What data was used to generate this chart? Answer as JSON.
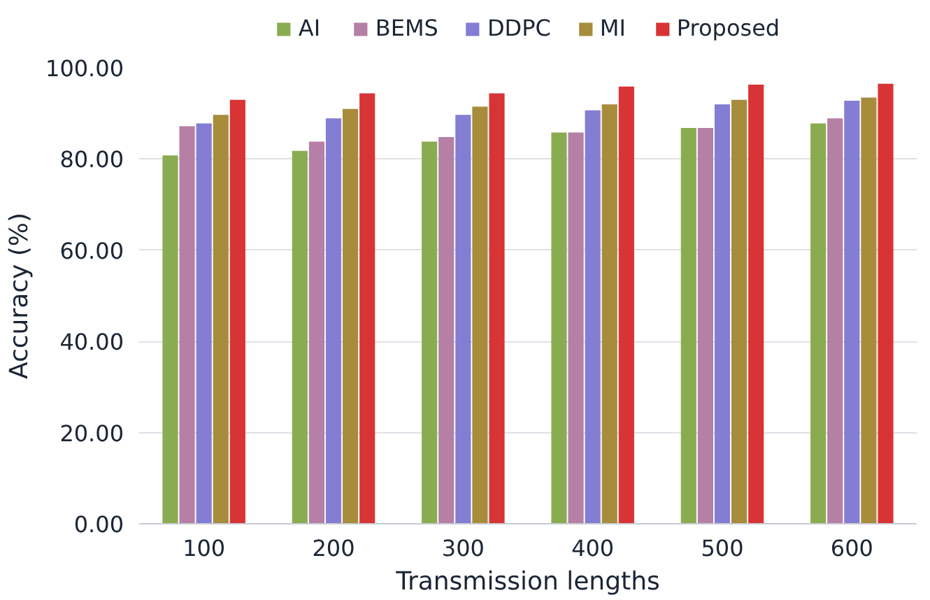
{
  "chart_data": {
    "type": "bar",
    "xlabel": "Transmission lengths",
    "ylabel": "Accuracy (%)",
    "categories": [
      "100",
      "200",
      "300",
      "400",
      "500",
      "600"
    ],
    "series": [
      {
        "name": "AI",
        "color": "#8aac50",
        "values": [
          80.8,
          81.8,
          83.8,
          85.8,
          86.8,
          87.8
        ]
      },
      {
        "name": "BEMS",
        "color": "#b57fa6",
        "values": [
          87.2,
          83.8,
          84.8,
          85.8,
          86.8,
          88.9
        ]
      },
      {
        "name": "DDPC",
        "color": "#837ed3",
        "values": [
          87.8,
          88.9,
          89.7,
          90.7,
          92.0,
          92.8
        ]
      },
      {
        "name": "MI",
        "color": "#a78c3c",
        "values": [
          89.7,
          91.0,
          91.5,
          92.0,
          93.0,
          93.5
        ]
      },
      {
        "name": "Proposed",
        "color": "#d93435",
        "values": [
          93.0,
          94.4,
          94.4,
          95.9,
          96.3,
          96.5
        ]
      }
    ],
    "ylim": [
      0,
      100
    ],
    "yticks": [
      {
        "value": 0,
        "label": "0.00"
      },
      {
        "value": 20,
        "label": "20.00"
      },
      {
        "value": 40,
        "label": "40.00"
      },
      {
        "value": 60,
        "label": "60.00"
      },
      {
        "value": 80,
        "label": "80.00"
      },
      {
        "value": 100,
        "label": "100.00"
      }
    ],
    "grid": "y",
    "legend": "top"
  }
}
